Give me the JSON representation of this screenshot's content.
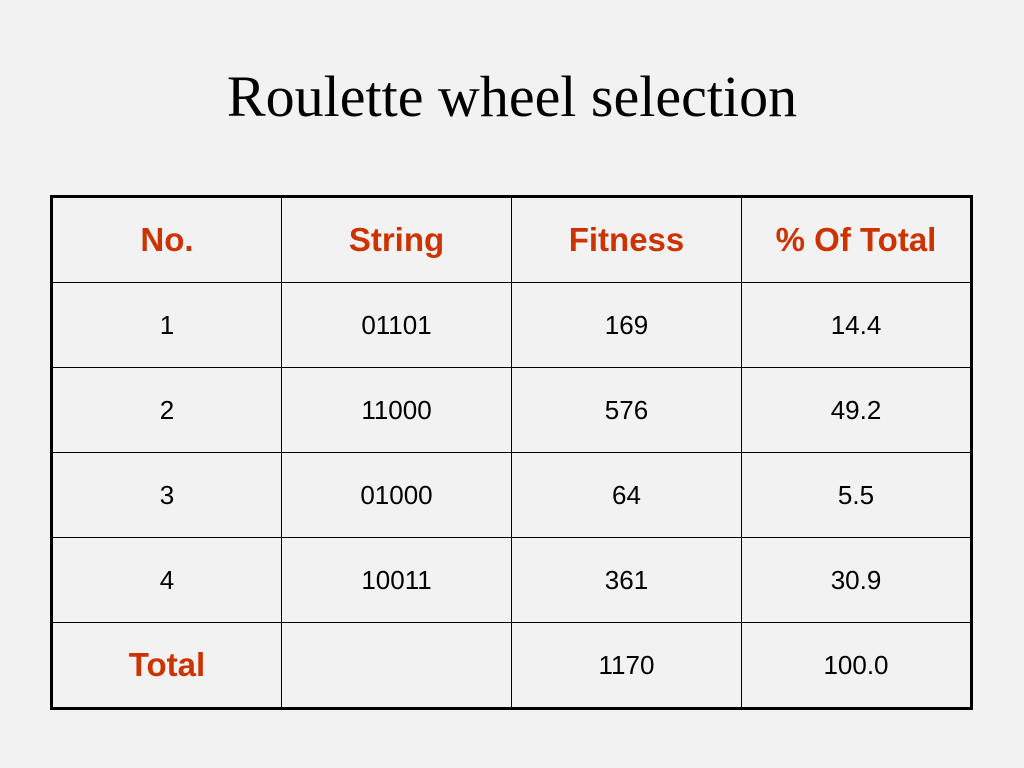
{
  "title": "Roulette wheel selection",
  "header_color": "#cc3300",
  "table": {
    "headers": [
      "No.",
      "String",
      "Fitness",
      "% Of Total"
    ],
    "rows": [
      [
        "1",
        "01101",
        "169",
        "14.4"
      ],
      [
        "2",
        "11000",
        "576",
        "49.2"
      ],
      [
        "3",
        "01000",
        "64",
        "5.5"
      ],
      [
        "4",
        "10011",
        "361",
        "30.9"
      ]
    ],
    "total": {
      "label": "Total",
      "string": "",
      "fitness": "1170",
      "percent": "100.0"
    }
  }
}
